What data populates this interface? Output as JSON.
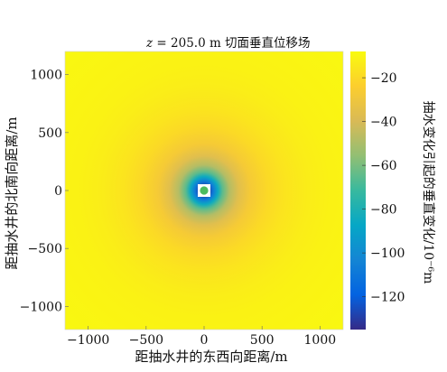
{
  "chart_data": {
    "type": "heatmap",
    "title_prefix": "z",
    "title_suffix": " = 205.0 m 切面垂直位移场",
    "xlabel": "距抽水井的东西向距离/m",
    "ylabel": "距抽水井的北南向距离/m",
    "colorbar_label": "抽水变化引起的垂直变化/10⁻⁶m",
    "xlim": [
      -1200,
      1200
    ],
    "ylim": [
      -1200,
      1200
    ],
    "x_ticks": [
      -1000,
      -500,
      0,
      500,
      1000
    ],
    "x_tick_labels": [
      "−1000",
      "−500",
      "0",
      "500",
      "1000"
    ],
    "y_ticks": [
      -1000,
      -500,
      0,
      500,
      1000
    ],
    "y_tick_labels": [
      "−1000",
      "−500",
      "0",
      "500",
      "1000"
    ],
    "colorbar_range": [
      -135,
      -8
    ],
    "colorbar_ticks": [
      -20,
      -40,
      -60,
      -80,
      -100,
      -120
    ],
    "colorbar_tick_labels": [
      "−20",
      "−40",
      "−60",
      "−80",
      "−100",
      "−120"
    ],
    "colormap": "parula",
    "field": {
      "shape": "radial",
      "center": [
        0,
        0
      ],
      "radial_profile": [
        {
          "r": 0,
          "value": -135
        },
        {
          "r": 40,
          "value": -128
        },
        {
          "r": 80,
          "value": -108
        },
        {
          "r": 120,
          "value": -85
        },
        {
          "r": 160,
          "value": -65
        },
        {
          "r": 220,
          "value": -48
        },
        {
          "r": 300,
          "value": -36
        },
        {
          "r": 400,
          "value": -27
        },
        {
          "r": 550,
          "value": -20
        },
        {
          "r": 700,
          "value": -16
        },
        {
          "r": 900,
          "value": -13
        },
        {
          "r": 1100,
          "value": -11
        },
        {
          "r": 1700,
          "value": -9
        }
      ]
    },
    "well_marker": {
      "x": 0,
      "y": 0,
      "color": "#4dbb5f"
    },
    "colors": {
      "parula_stops": [
        "#352a87",
        "#0363e1",
        "#1485d4",
        "#06a7c6",
        "#38b99e",
        "#92bf73",
        "#d9ba56",
        "#fcce2e",
        "#f9fb0e"
      ]
    }
  }
}
